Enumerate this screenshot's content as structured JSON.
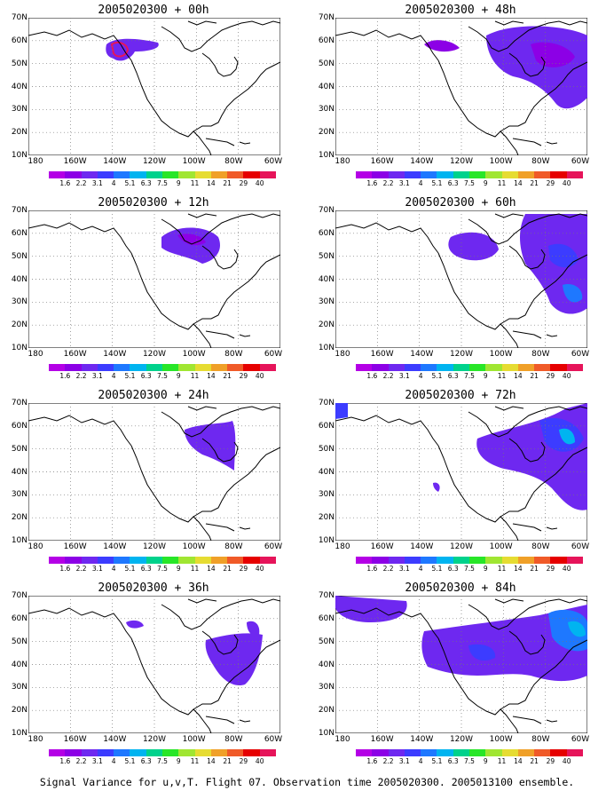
{
  "caption": "Signal Variance for u,v,T. Flight 07. Observation time 2005020300. 2005013100 ensemble.",
  "y_labels": [
    "70N",
    "60N",
    "50N",
    "40N",
    "30N",
    "20N",
    "10N"
  ],
  "x_labels": [
    "180",
    "160W",
    "140W",
    "120W",
    "100W",
    "80W",
    "60W"
  ],
  "color_levels": [
    "1.6",
    "2.2",
    "3.1",
    "4",
    "5.1",
    "6.3",
    "7.5",
    "9",
    "11",
    "14",
    "21",
    "29",
    "40"
  ],
  "colors": [
    "#b400e6",
    "#8c00e6",
    "#6e28f0",
    "#3c3cff",
    "#1e78ff",
    "#00b4f0",
    "#00d28c",
    "#28e628",
    "#a0e632",
    "#e6dc32",
    "#f0a028",
    "#f05a28",
    "#e60000",
    "#e6145a"
  ],
  "panels": [
    {
      "id": "p00",
      "title": "2005020300 + 00h"
    },
    {
      "id": "p48",
      "title": "2005020300 + 48h"
    },
    {
      "id": "p12",
      "title": "2005020300 + 12h"
    },
    {
      "id": "p60",
      "title": "2005020300 + 60h"
    },
    {
      "id": "p24",
      "title": "2005020300 + 24h"
    },
    {
      "id": "p72",
      "title": "2005020300 + 72h"
    },
    {
      "id": "p36",
      "title": "2005020300 + 36h"
    },
    {
      "id": "p84",
      "title": "2005020300 + 84h"
    }
  ]
}
